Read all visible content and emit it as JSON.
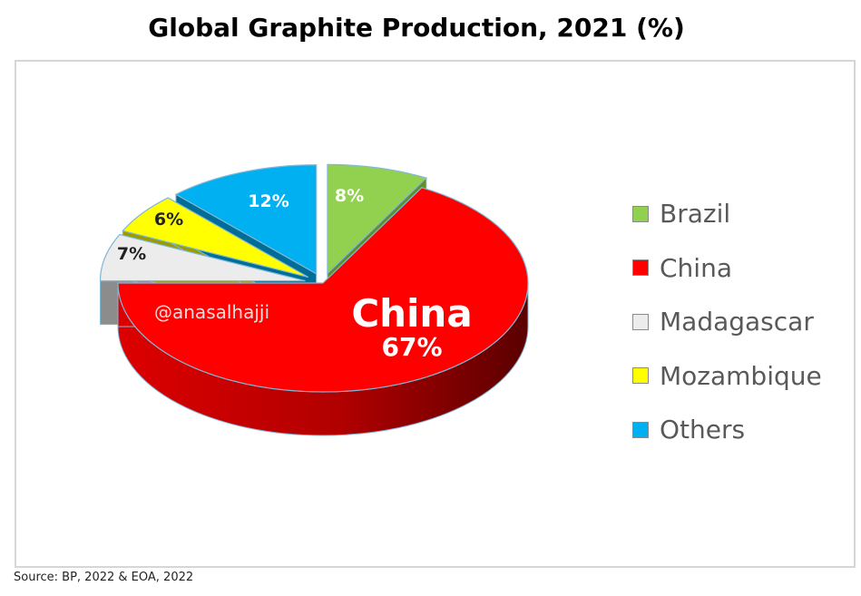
{
  "title": "Global Graphite Production, 2021 (%)",
  "source": "Source: BP, 2022 & EOA, 2022",
  "watermark": "@anasalhajji",
  "chart_data": {
    "type": "pie",
    "style": "3d-exploded",
    "categories": [
      "Brazil",
      "China",
      "Madagascar",
      "Mozambique",
      "Others"
    ],
    "values": [
      8,
      67,
      7,
      6,
      12
    ],
    "data_labels": [
      "8%",
      "67%",
      "7%",
      "6%",
      "12%"
    ],
    "highlight_label": "China",
    "colors": {
      "Brazil": "#92d050",
      "China": "#ff0000",
      "Madagascar": "#ececec",
      "Mozambique": "#ffff00",
      "Others": "#00b0f0"
    },
    "legend_position": "right"
  }
}
